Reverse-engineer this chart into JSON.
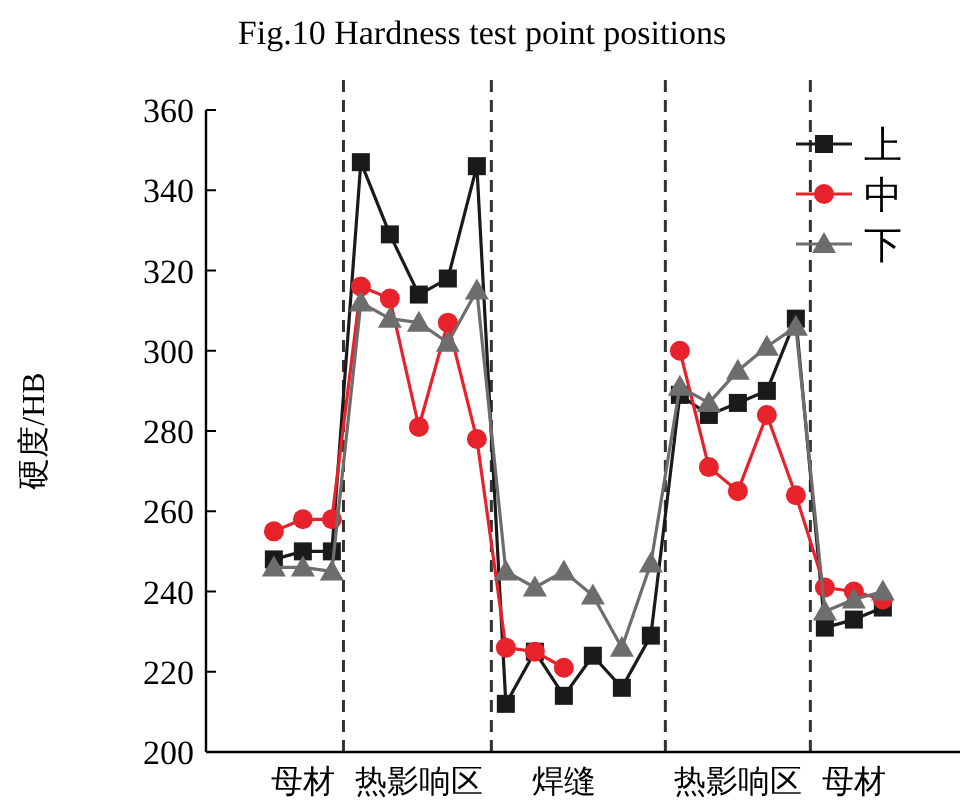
{
  "chart_data": {
    "type": "line",
    "title": "Fig.10    Hardness test point positions",
    "ylabel": "硬度/HB",
    "categories": [
      null,
      "母材",
      null,
      null,
      null,
      "热影响区",
      null,
      null,
      null,
      null,
      "焊缝",
      null,
      null,
      null,
      null,
      null,
      "热影响区",
      null,
      null,
      null,
      "母材",
      null
    ],
    "ylim": [
      200,
      360
    ],
    "yticks": [
      200,
      220,
      240,
      260,
      280,
      300,
      320,
      340,
      360
    ],
    "legend": "top right",
    "series": [
      {
        "name": "上",
        "color": "#1a1a1a",
        "marker": "square",
        "values": [
          248,
          250,
          250,
          347,
          329,
          314,
          318,
          346,
          212,
          225,
          214,
          224,
          216,
          229,
          289,
          284,
          287,
          290,
          308,
          231,
          233,
          236
        ]
      },
      {
        "name": "中",
        "color": "#e8222a",
        "marker": "circle",
        "values": [
          255,
          258,
          258,
          316,
          313,
          281,
          307,
          278,
          226,
          225,
          221,
          null,
          null,
          null,
          300,
          271,
          265,
          284,
          264,
          241,
          240,
          238
        ]
      },
      {
        "name": "下",
        "color": "#6d6d6d",
        "marker": "triangle",
        "values": [
          246,
          246,
          245,
          312,
          308,
          307,
          302,
          315,
          245,
          241,
          245,
          239,
          226,
          247,
          291,
          287,
          295,
          301,
          306,
          235,
          238,
          240
        ]
      }
    ]
  }
}
